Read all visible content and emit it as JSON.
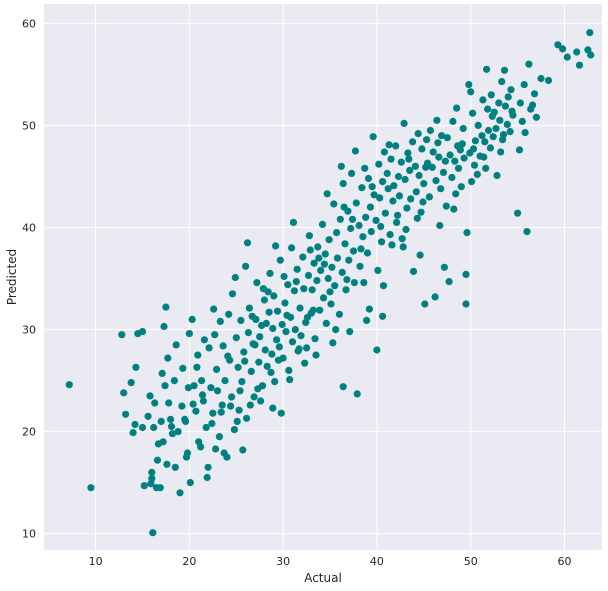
{
  "chart_data": {
    "type": "scatter",
    "title": "",
    "xlabel": "Actual",
    "ylabel": "Predicted",
    "xlim": [
      4.5,
      64
    ],
    "ylim": [
      8.4,
      61.9
    ],
    "xticks": [
      10,
      20,
      30,
      40,
      50,
      60
    ],
    "yticks": [
      10,
      20,
      30,
      40,
      50,
      60
    ],
    "grid": true,
    "background": "#eaeaf2",
    "grid_color": "#ffffff",
    "marker_color": "#008080",
    "points": [
      [
        7.2,
        24.6
      ],
      [
        9.5,
        14.5
      ],
      [
        12.8,
        29.5
      ],
      [
        13.0,
        23.8
      ],
      [
        13.2,
        21.7
      ],
      [
        13.8,
        24.8
      ],
      [
        14.0,
        19.9
      ],
      [
        14.2,
        20.7
      ],
      [
        14.3,
        26.3
      ],
      [
        14.5,
        29.6
      ],
      [
        15.0,
        20.4
      ],
      [
        15.0,
        29.8
      ],
      [
        15.2,
        14.7
      ],
      [
        15.6,
        21.5
      ],
      [
        15.8,
        23.5
      ],
      [
        15.9,
        14.9
      ],
      [
        16.0,
        16.0
      ],
      [
        16.0,
        15.4
      ],
      [
        16.1,
        10.1
      ],
      [
        16.2,
        20.4
      ],
      [
        16.3,
        22.8
      ],
      [
        16.5,
        14.5
      ],
      [
        16.7,
        18.8
      ],
      [
        16.9,
        14.5
      ],
      [
        17.0,
        21.0
      ],
      [
        17.3,
        30.3
      ],
      [
        17.4,
        24.5
      ],
      [
        17.5,
        32.2
      ],
      [
        17.6,
        16.8
      ],
      [
        17.8,
        22.8
      ],
      [
        18.0,
        21.2
      ],
      [
        18.2,
        19.8
      ],
      [
        18.4,
        25.0
      ],
      [
        18.5,
        16.5
      ],
      [
        18.8,
        20.0
      ],
      [
        19.0,
        14.0
      ],
      [
        19.2,
        22.5
      ],
      [
        19.3,
        26.2
      ],
      [
        19.6,
        21.0
      ],
      [
        19.8,
        17.9
      ],
      [
        20.0,
        29.6
      ],
      [
        20.1,
        15.0
      ],
      [
        20.3,
        31.0
      ],
      [
        20.5,
        24.5
      ],
      [
        20.7,
        22.0
      ],
      [
        20.9,
        27.5
      ],
      [
        21.2,
        18.5
      ],
      [
        21.3,
        25.0
      ],
      [
        21.5,
        23.0
      ],
      [
        21.8,
        20.4
      ],
      [
        22.0,
        16.5
      ],
      [
        22.1,
        28.2
      ],
      [
        22.3,
        24.3
      ],
      [
        22.5,
        21.8
      ],
      [
        22.7,
        29.5
      ],
      [
        22.9,
        26.1
      ],
      [
        23.2,
        19.5
      ],
      [
        23.3,
        30.8
      ],
      [
        23.5,
        22.6
      ],
      [
        23.6,
        28.4
      ],
      [
        23.8,
        25.0
      ],
      [
        24.0,
        17.5
      ],
      [
        24.2,
        31.5
      ],
      [
        24.3,
        27.0
      ],
      [
        24.5,
        23.4
      ],
      [
        24.6,
        33.5
      ],
      [
        24.8,
        20.2
      ],
      [
        25.0,
        29.2
      ],
      [
        25.2,
        26.3
      ],
      [
        25.3,
        22.1
      ],
      [
        25.5,
        30.9
      ],
      [
        25.6,
        24.9
      ],
      [
        25.8,
        27.8
      ],
      [
        26.0,
        36.2
      ],
      [
        26.1,
        21.3
      ],
      [
        26.3,
        29.7
      ],
      [
        26.4,
        32.1
      ],
      [
        26.6,
        25.9
      ],
      [
        26.8,
        28.6
      ],
      [
        26.9,
        23.4
      ],
      [
        27.1,
        31.0
      ],
      [
        27.2,
        34.6
      ],
      [
        27.4,
        26.8
      ],
      [
        27.5,
        29.3
      ],
      [
        27.7,
        30.4
      ],
      [
        27.8,
        24.5
      ],
      [
        28.0,
        32.9
      ],
      [
        28.1,
        28.0
      ],
      [
        28.2,
        30.6
      ],
      [
        28.3,
        26.4
      ],
      [
        28.5,
        31.7
      ],
      [
        28.6,
        35.5
      ],
      [
        28.8,
        27.6
      ],
      [
        28.9,
        30.1
      ],
      [
        29.0,
        33.3
      ],
      [
        29.1,
        24.9
      ],
      [
        29.3,
        29.0
      ],
      [
        29.4,
        31.8
      ],
      [
        29.6,
        28.3
      ],
      [
        29.7,
        36.8
      ],
      [
        29.9,
        30.5
      ],
      [
        30.0,
        27.2
      ],
      [
        30.2,
        32.6
      ],
      [
        30.3,
        29.8
      ],
      [
        30.5,
        34.4
      ],
      [
        30.6,
        26.0
      ],
      [
        30.8,
        31.2
      ],
      [
        30.9,
        38.0
      ],
      [
        31.0,
        28.8
      ],
      [
        31.2,
        33.8
      ],
      [
        31.3,
        30.0
      ],
      [
        31.5,
        35.9
      ],
      [
        31.6,
        27.9
      ],
      [
        31.8,
        32.1
      ],
      [
        31.9,
        29.4
      ],
      [
        32.1,
        37.1
      ],
      [
        32.2,
        34.0
      ],
      [
        32.4,
        30.7
      ],
      [
        32.5,
        28.2
      ],
      [
        32.7,
        35.3
      ],
      [
        32.8,
        39.2
      ],
      [
        33.0,
        31.6
      ],
      [
        33.1,
        33.9
      ],
      [
        33.3,
        36.5
      ],
      [
        33.4,
        29.1
      ],
      [
        33.6,
        34.8
      ],
      [
        33.7,
        38.1
      ],
      [
        33.9,
        31.9
      ],
      [
        34.0,
        35.8
      ],
      [
        34.2,
        40.3
      ],
      [
        34.3,
        33.1
      ],
      [
        34.5,
        37.4
      ],
      [
        34.6,
        30.6
      ],
      [
        34.8,
        35.0
      ],
      [
        34.9,
        38.8
      ],
      [
        35.1,
        32.5
      ],
      [
        35.2,
        36.1
      ],
      [
        35.4,
        42.3
      ],
      [
        35.5,
        34.3
      ],
      [
        35.7,
        39.5
      ],
      [
        35.8,
        37.0
      ],
      [
        36.0,
        31.5
      ],
      [
        36.1,
        40.8
      ],
      [
        36.3,
        35.6
      ],
      [
        36.4,
        44.3
      ],
      [
        36.6,
        38.4
      ],
      [
        36.7,
        33.9
      ],
      [
        36.9,
        41.6
      ],
      [
        37.0,
        36.8
      ],
      [
        37.2,
        39.9
      ],
      [
        37.3,
        45.3
      ],
      [
        37.5,
        37.7
      ],
      [
        37.6,
        34.6
      ],
      [
        37.8,
        42.4
      ],
      [
        37.9,
        23.7
      ],
      [
        38.1,
        40.2
      ],
      [
        38.2,
        36.2
      ],
      [
        38.4,
        43.9
      ],
      [
        38.5,
        39.1
      ],
      [
        38.7,
        45.8
      ],
      [
        38.8,
        41.0
      ],
      [
        39.0,
        37.5
      ],
      [
        39.1,
        44.8
      ],
      [
        39.3,
        42.0
      ],
      [
        39.4,
        39.6
      ],
      [
        39.6,
        48.9
      ],
      [
        39.7,
        43.2
      ],
      [
        39.9,
        40.7
      ],
      [
        40.0,
        28.0
      ],
      [
        40.2,
        46.2
      ],
      [
        40.3,
        42.9
      ],
      [
        40.5,
        38.6
      ],
      [
        40.6,
        44.5
      ],
      [
        40.8,
        47.4
      ],
      [
        40.9,
        41.4
      ],
      [
        41.1,
        45.3
      ],
      [
        41.2,
        43.8
      ],
      [
        41.4,
        39.3
      ],
      [
        41.5,
        46.7
      ],
      [
        41.7,
        42.6
      ],
      [
        41.8,
        44.1
      ],
      [
        42.0,
        48.0
      ],
      [
        42.1,
        40.5
      ],
      [
        42.3,
        45.0
      ],
      [
        42.4,
        43.1
      ],
      [
        42.6,
        46.4
      ],
      [
        42.7,
        38.9
      ],
      [
        42.9,
        50.2
      ],
      [
        43.0,
        44.7
      ],
      [
        43.2,
        41.9
      ],
      [
        43.3,
        47.3
      ],
      [
        43.5,
        45.6
      ],
      [
        43.6,
        42.8
      ],
      [
        43.8,
        48.4
      ],
      [
        43.9,
        35.7
      ],
      [
        44.1,
        46.0
      ],
      [
        44.2,
        43.5
      ],
      [
        44.4,
        49.2
      ],
      [
        44.5,
        45.1
      ],
      [
        44.7,
        41.5
      ],
      [
        44.8,
        47.7
      ],
      [
        45.0,
        44.3
      ],
      [
        45.1,
        32.5
      ],
      [
        45.3,
        48.6
      ],
      [
        45.4,
        46.3
      ],
      [
        45.6,
        43.0
      ],
      [
        45.7,
        49.5
      ],
      [
        45.9,
        45.9
      ],
      [
        46.0,
        47.4
      ],
      [
        46.2,
        33.2
      ],
      [
        46.3,
        44.6
      ],
      [
        46.5,
        48.3
      ],
      [
        46.6,
        46.9
      ],
      [
        46.8,
        43.8
      ],
      [
        46.9,
        49.0
      ],
      [
        47.1,
        45.4
      ],
      [
        47.2,
        36.1
      ],
      [
        47.4,
        42.1
      ],
      [
        47.5,
        48.8
      ],
      [
        47.7,
        34.7
      ],
      [
        47.8,
        47.1
      ],
      [
        48.0,
        44.9
      ],
      [
        48.1,
        50.4
      ],
      [
        48.3,
        46.5
      ],
      [
        48.4,
        43.3
      ],
      [
        48.6,
        48.0
      ],
      [
        48.7,
        45.8
      ],
      [
        48.9,
        47.6
      ],
      [
        49.0,
        44.0
      ],
      [
        49.2,
        49.7
      ],
      [
        49.3,
        46.8
      ],
      [
        49.5,
        32.5
      ],
      [
        49.5,
        35.4
      ],
      [
        49.6,
        39.5
      ],
      [
        49.8,
        54.0
      ],
      [
        49.9,
        47.3
      ],
      [
        50.1,
        44.5
      ],
      [
        50.2,
        51.2
      ],
      [
        50.4,
        46.1
      ],
      [
        50.5,
        48.5
      ],
      [
        50.7,
        45.2
      ],
      [
        50.8,
        50.0
      ],
      [
        51.0,
        47.0
      ],
      [
        51.2,
        49.0
      ],
      [
        51.3,
        52.5
      ],
      [
        51.5,
        48.4
      ],
      [
        51.6,
        45.8
      ],
      [
        51.8,
        51.6
      ],
      [
        51.9,
        49.5
      ],
      [
        52.1,
        47.8
      ],
      [
        52.2,
        53.0
      ],
      [
        52.4,
        48.9
      ],
      [
        52.5,
        51.3
      ],
      [
        52.7,
        49.7
      ],
      [
        52.8,
        45.1
      ],
      [
        53.0,
        52.2
      ],
      [
        53.1,
        50.5
      ],
      [
        53.3,
        54.3
      ],
      [
        53.4,
        48.6
      ],
      [
        53.6,
        55.4
      ],
      [
        53.7,
        51.9
      ],
      [
        53.9,
        50.1
      ],
      [
        54.0,
        52.8
      ],
      [
        54.2,
        49.4
      ],
      [
        54.3,
        53.5
      ],
      [
        54.5,
        51.0
      ],
      [
        55.0,
        41.4
      ],
      [
        55.3,
        52.2
      ],
      [
        55.5,
        50.4
      ],
      [
        55.7,
        54.0
      ],
      [
        55.8,
        49.3
      ],
      [
        56.0,
        39.6
      ],
      [
        56.2,
        56.0
      ],
      [
        56.4,
        51.6
      ],
      [
        56.8,
        53.1
      ],
      [
        57.0,
        50.8
      ],
      [
        57.5,
        54.6
      ],
      [
        58.3,
        54.4
      ],
      [
        59.3,
        57.9
      ],
      [
        59.8,
        57.5
      ],
      [
        60.3,
        56.7
      ],
      [
        61.3,
        57.2
      ],
      [
        61.6,
        55.9
      ],
      [
        62.5,
        57.4
      ],
      [
        62.7,
        59.1
      ],
      [
        62.8,
        56.9
      ],
      [
        19.5,
        21.2
      ],
      [
        21.0,
        19.0
      ],
      [
        22.4,
        20.8
      ],
      [
        23.0,
        24.0
      ],
      [
        24.4,
        22.5
      ],
      [
        25.9,
        26.9
      ],
      [
        27.0,
        28.5
      ],
      [
        28.4,
        33.7
      ],
      [
        29.5,
        27.0
      ],
      [
        30.4,
        31.4
      ],
      [
        31.4,
        34.7
      ],
      [
        32.6,
        31.2
      ],
      [
        33.8,
        37.0
      ],
      [
        34.4,
        36.4
      ],
      [
        35.6,
        30.0
      ],
      [
        36.5,
        42.0
      ],
      [
        37.4,
        40.8
      ],
      [
        38.3,
        37.9
      ],
      [
        39.5,
        44.0
      ],
      [
        40.4,
        40.1
      ],
      [
        41.3,
        48.1
      ],
      [
        42.2,
        41.2
      ],
      [
        43.4,
        46.7
      ],
      [
        44.3,
        40.9
      ],
      [
        45.2,
        45.9
      ],
      [
        46.4,
        50.5
      ],
      [
        47.3,
        46.5
      ],
      [
        48.2,
        41.8
      ],
      [
        49.1,
        48.2
      ],
      [
        50.3,
        47.7
      ],
      [
        51.4,
        46.9
      ],
      [
        52.3,
        50.9
      ],
      [
        53.2,
        47.4
      ],
      [
        54.4,
        51.4
      ],
      [
        55.2,
        47.6
      ],
      [
        56.6,
        52.0
      ],
      [
        18.6,
        28.5
      ],
      [
        17.7,
        27.2
      ],
      [
        20.8,
        26.3
      ],
      [
        21.6,
        29.0
      ],
      [
        22.6,
        32.0
      ],
      [
        24.9,
        35.1
      ],
      [
        26.2,
        38.5
      ],
      [
        27.9,
        34.0
      ],
      [
        29.2,
        38.2
      ],
      [
        31.1,
        40.5
      ],
      [
        32.9,
        37.8
      ],
      [
        34.7,
        43.3
      ],
      [
        36.2,
        46.0
      ],
      [
        37.7,
        47.5
      ],
      [
        39.2,
        32.0
      ],
      [
        40.7,
        34.3
      ],
      [
        42.8,
        38.1
      ],
      [
        44.6,
        37.3
      ],
      [
        17.1,
        25.7
      ],
      [
        18.1,
        20.5
      ],
      [
        19.9,
        24.3
      ],
      [
        21.4,
        23.6
      ],
      [
        22.8,
        18.3
      ],
      [
        24.1,
        27.4
      ],
      [
        25.4,
        24.0
      ],
      [
        26.7,
        31.3
      ],
      [
        28.7,
        25.8
      ],
      [
        30.1,
        35.2
      ],
      [
        31.7,
        28.1
      ],
      [
        33.2,
        31.9
      ],
      [
        35.0,
        33.7
      ],
      [
        36.8,
        34.9
      ],
      [
        38.6,
        34.6
      ],
      [
        40.1,
        35.8
      ],
      [
        41.6,
        38.3
      ],
      [
        43.1,
        39.8
      ],
      [
        44.9,
        42.5
      ],
      [
        46.7,
        40.2
      ],
      [
        48.5,
        51.7
      ],
      [
        50.0,
        53.3
      ],
      [
        51.7,
        55.5
      ],
      [
        53.5,
        49.1
      ],
      [
        16.6,
        17.2
      ],
      [
        17.2,
        19.0
      ],
      [
        20.4,
        22.7
      ],
      [
        23.7,
        17.9
      ],
      [
        25.1,
        21.0
      ],
      [
        26.5,
        22.6
      ],
      [
        27.3,
        24.2
      ],
      [
        28.9,
        22.3
      ],
      [
        30.7,
        25.1
      ],
      [
        32.3,
        26.7
      ],
      [
        33.5,
        27.5
      ],
      [
        35.3,
        28.7
      ],
      [
        36.4,
        24.4
      ],
      [
        37.1,
        29.8
      ],
      [
        38.9,
        30.9
      ],
      [
        40.6,
        31.3
      ],
      [
        19.7,
        17.5
      ],
      [
        21.9,
        15.5
      ],
      [
        23.4,
        21.9
      ],
      [
        25.7,
        18.2
      ],
      [
        27.6,
        23.0
      ],
      [
        29.8,
        21.8
      ]
    ]
  }
}
